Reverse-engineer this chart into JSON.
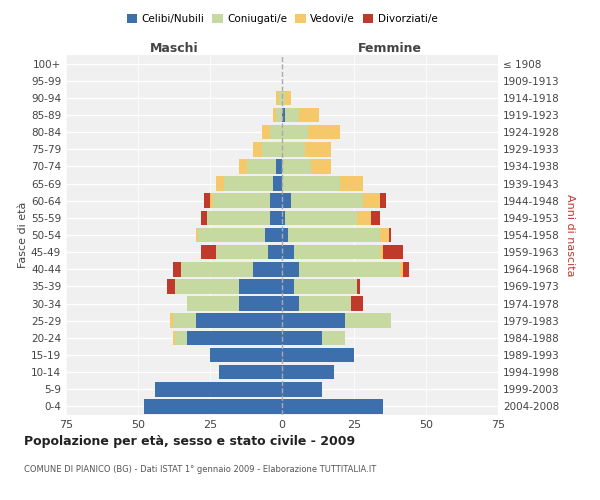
{
  "age_groups": [
    "0-4",
    "5-9",
    "10-14",
    "15-19",
    "20-24",
    "25-29",
    "30-34",
    "35-39",
    "40-44",
    "45-49",
    "50-54",
    "55-59",
    "60-64",
    "65-69",
    "70-74",
    "75-79",
    "80-84",
    "85-89",
    "90-94",
    "95-99",
    "100+"
  ],
  "birth_years": [
    "2004-2008",
    "1999-2003",
    "1994-1998",
    "1989-1993",
    "1984-1988",
    "1979-1983",
    "1974-1978",
    "1969-1973",
    "1964-1968",
    "1959-1963",
    "1954-1958",
    "1949-1953",
    "1944-1948",
    "1939-1943",
    "1934-1938",
    "1929-1933",
    "1924-1928",
    "1919-1923",
    "1914-1918",
    "1909-1913",
    "≤ 1908"
  ],
  "male": {
    "celibe": [
      48,
      44,
      22,
      25,
      33,
      30,
      15,
      15,
      10,
      5,
      6,
      4,
      4,
      3,
      2,
      0,
      0,
      0,
      0,
      0,
      0
    ],
    "coniugato": [
      0,
      0,
      0,
      0,
      4,
      8,
      18,
      22,
      25,
      18,
      23,
      22,
      20,
      17,
      10,
      7,
      4,
      2,
      1,
      0,
      0
    ],
    "vedovo": [
      0,
      0,
      0,
      0,
      1,
      1,
      0,
      0,
      0,
      0,
      1,
      0,
      1,
      3,
      3,
      3,
      3,
      1,
      1,
      0,
      0
    ],
    "divorziato": [
      0,
      0,
      0,
      0,
      0,
      0,
      0,
      3,
      3,
      5,
      0,
      2,
      2,
      0,
      0,
      0,
      0,
      0,
      0,
      0,
      0
    ]
  },
  "female": {
    "nubile": [
      35,
      14,
      18,
      25,
      14,
      22,
      6,
      4,
      6,
      4,
      2,
      1,
      3,
      0,
      0,
      0,
      0,
      1,
      0,
      0,
      0
    ],
    "coniugata": [
      0,
      0,
      0,
      0,
      8,
      16,
      18,
      22,
      35,
      30,
      32,
      25,
      25,
      20,
      10,
      8,
      9,
      5,
      1,
      0,
      0
    ],
    "vedova": [
      0,
      0,
      0,
      0,
      0,
      0,
      0,
      0,
      1,
      1,
      3,
      5,
      6,
      8,
      7,
      9,
      11,
      7,
      2,
      0,
      0
    ],
    "divorziata": [
      0,
      0,
      0,
      0,
      0,
      0,
      4,
      1,
      2,
      7,
      1,
      3,
      2,
      0,
      0,
      0,
      0,
      0,
      0,
      0,
      0
    ]
  },
  "colors": {
    "celibe": "#3d6fad",
    "coniugato": "#c5d9a0",
    "vedovo": "#f5c96a",
    "divorziato": "#c0392b"
  },
  "xlim": 75,
  "title": "Popolazione per età, sesso e stato civile - 2009",
  "subtitle": "COMUNE DI PIANICO (BG) - Dati ISTAT 1° gennaio 2009 - Elaborazione TUTTITALIA.IT",
  "ylabel_left": "Fasce di età",
  "ylabel_right": "Anni di nascita",
  "legend_labels": [
    "Celibi/Nubili",
    "Coniugati/e",
    "Vedovi/e",
    "Divorziati/e"
  ],
  "background_color": "#f0f0f0",
  "bar_height": 0.85
}
